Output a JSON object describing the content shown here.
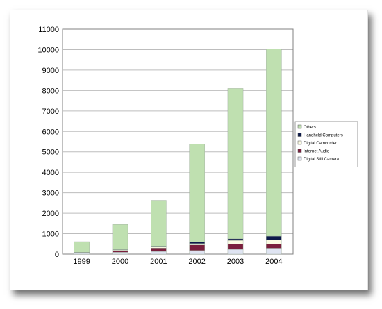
{
  "chart_data": {
    "type": "bar",
    "stacked": true,
    "categories": [
      "1999",
      "2000",
      "2001",
      "2002",
      "2003",
      "2004"
    ],
    "series": [
      {
        "name": "Digital Still Camera",
        "color": "#dfe4f2",
        "values": [
          50,
          90,
          130,
          180,
          230,
          290
        ]
      },
      {
        "name": "Internet Audio",
        "color": "#7a1f3d",
        "values": [
          20,
          70,
          170,
          270,
          260,
          200
        ]
      },
      {
        "name": "Digital Camcorder",
        "color": "#fbfbe3",
        "values": [
          10,
          40,
          60,
          70,
          180,
          200
        ]
      },
      {
        "name": "Handheld Computers",
        "color": "#0d1a4a",
        "values": [
          10,
          20,
          30,
          70,
          80,
          190
        ]
      },
      {
        "name": "Others",
        "color": "#bfe0b0",
        "values": [
          520,
          1230,
          2240,
          4800,
          7350,
          9160
        ]
      }
    ],
    "ylim": [
      0,
      11000
    ],
    "yticks": [
      0,
      1000,
      2000,
      3000,
      4000,
      5000,
      6000,
      7000,
      8000,
      9000,
      10000,
      11000
    ],
    "grid": true,
    "legend_position": "right",
    "title": "",
    "xlabel": "",
    "ylabel": ""
  }
}
